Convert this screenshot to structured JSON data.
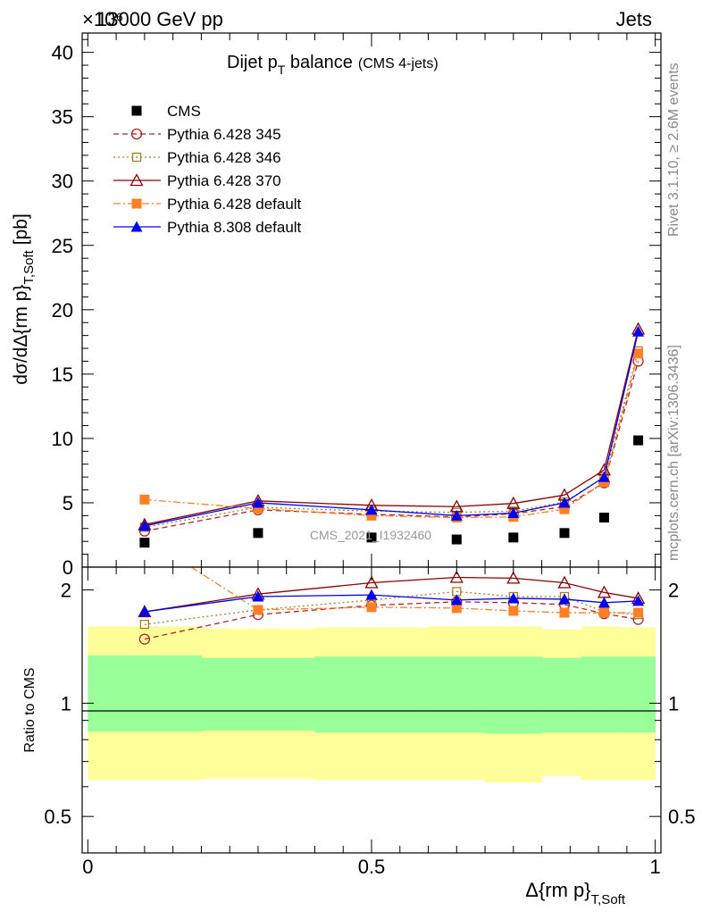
{
  "header": {
    "left": "13000 GeV pp",
    "right": "Jets",
    "exponent": "×10⁶"
  },
  "side_labels": {
    "rivet": "Rivet 3.1.10, ≥ 2.6M events",
    "mcplots": "mcplots.cern.ch [arXiv:1306.3436]"
  },
  "title": {
    "main": "Dijet p",
    "main_sub": "T",
    "main_rest": " balance",
    "tag": "(CMS 4-jets)"
  },
  "watermark": "CMS_2021_I1932460",
  "colors": {
    "cms": "#000000",
    "py345": "#b22222",
    "py346": "#a0802a",
    "py370": "#8b0000",
    "py6def": "#ff7f24",
    "py8def": "#0000ee",
    "band_inner": "#99ff99",
    "band_outer": "#ffff99"
  },
  "chart_data": [
    {
      "type": "line",
      "panel": "main",
      "ylabel": "dσ/dΔ{rm p}",
      "ylabel_sub": "T,Soft",
      "ylabel_unit": "[pb]",
      "ylim": [
        0,
        41.5
      ],
      "yticks": [
        0,
        5,
        10,
        15,
        20,
        25,
        30,
        35,
        40
      ],
      "xlim": [
        -0.01,
        1.01
      ],
      "x": [
        0.1,
        0.3,
        0.5,
        0.65,
        0.75,
        0.84,
        0.91,
        0.97
      ],
      "series": [
        {
          "name": "CMS",
          "key": "cms",
          "style": "points",
          "marker": "square-filled",
          "values": [
            1.9,
            2.65,
            2.3,
            2.15,
            2.3,
            2.65,
            3.85,
            9.85
          ]
        },
        {
          "name": "Pythia 6.428 345",
          "key": "py345",
          "style": "dashed",
          "marker": "circle-open",
          "values": [
            2.8,
            4.45,
            4.1,
            3.9,
            4.15,
            4.7,
            6.55,
            16.0
          ]
        },
        {
          "name": "Pythia 6.428 346",
          "key": "py346",
          "style": "dotted",
          "marker": "square-open",
          "values": [
            3.1,
            4.65,
            4.35,
            4.25,
            4.35,
            5.05,
            7.0,
            16.8
          ]
        },
        {
          "name": "Pythia 6.428 370",
          "key": "py370",
          "style": "solid",
          "marker": "triangle-open",
          "values": [
            3.3,
            5.15,
            4.8,
            4.7,
            4.95,
            5.6,
            7.55,
            18.5
          ]
        },
        {
          "name": "Pythia 6.428 default",
          "key": "py6def",
          "style": "dashdot",
          "marker": "square-filled",
          "values": [
            5.25,
            4.55,
            4.0,
            3.85,
            3.9,
            4.5,
            6.6,
            16.6
          ]
        },
        {
          "name": "Pythia 8.308 default",
          "key": "py8def",
          "style": "solid",
          "marker": "triangle-filled",
          "values": [
            3.2,
            5.0,
            4.45,
            4.0,
            4.2,
            5.0,
            7.0,
            18.3
          ]
        }
      ]
    },
    {
      "type": "line",
      "panel": "ratio",
      "ylabel": "Ratio to CMS",
      "yscale": "log",
      "ylim": [
        0.4,
        2.3
      ],
      "yticks": [
        0.5,
        1,
        2
      ],
      "ytick_labels": [
        "0.5",
        "1",
        "2"
      ],
      "xlabel": "Δ{rm p}",
      "xlabel_sub": "T,Soft",
      "xlim": [
        -0.01,
        1.01
      ],
      "xticks": [
        0,
        0.5,
        1
      ],
      "xtick_labels": [
        "0",
        "0.5",
        "1"
      ],
      "x": [
        0.1,
        0.3,
        0.5,
        0.65,
        0.75,
        0.84,
        0.91,
        0.97
      ],
      "band_edges": [
        0.0,
        0.2,
        0.4,
        0.6,
        0.7,
        0.8,
        0.87,
        0.94,
        1.0
      ],
      "band_inner": [
        [
          0.84,
          1.34
        ],
        [
          0.845,
          1.32
        ],
        [
          0.835,
          1.33
        ],
        [
          0.835,
          1.33
        ],
        [
          0.83,
          1.33
        ],
        [
          0.835,
          1.32
        ],
        [
          0.835,
          1.33
        ],
        [
          0.835,
          1.33
        ]
      ],
      "band_outer": [
        [
          0.625,
          1.6
        ],
        [
          0.63,
          1.58
        ],
        [
          0.625,
          1.59
        ],
        [
          0.625,
          1.6
        ],
        [
          0.615,
          1.6
        ],
        [
          0.64,
          1.57
        ],
        [
          0.625,
          1.6
        ],
        [
          0.625,
          1.59
        ]
      ],
      "series": [
        {
          "key": "py345",
          "style": "dashed",
          "marker": "circle-open",
          "values": [
            1.48,
            1.72,
            1.82,
            1.86,
            1.85,
            1.83,
            1.73,
            1.67
          ]
        },
        {
          "key": "py346",
          "style": "dotted",
          "marker": "square-open",
          "values": [
            1.62,
            1.77,
            1.88,
            1.98,
            1.92,
            1.92,
            1.75,
            1.72
          ]
        },
        {
          "key": "py370",
          "style": "solid",
          "marker": "triangle-open",
          "values": [
            1.75,
            1.95,
            2.09,
            2.16,
            2.15,
            2.09,
            1.97,
            1.9
          ]
        },
        {
          "key": "py6def",
          "style": "dashdot",
          "marker": "square-filled",
          "values": [
            2.76,
            1.77,
            1.8,
            1.79,
            1.76,
            1.74,
            1.74,
            1.74
          ]
        },
        {
          "key": "py8def",
          "style": "solid",
          "marker": "triangle-filled",
          "values": [
            1.75,
            1.92,
            1.94,
            1.88,
            1.9,
            1.89,
            1.85,
            1.87
          ]
        }
      ]
    }
  ]
}
